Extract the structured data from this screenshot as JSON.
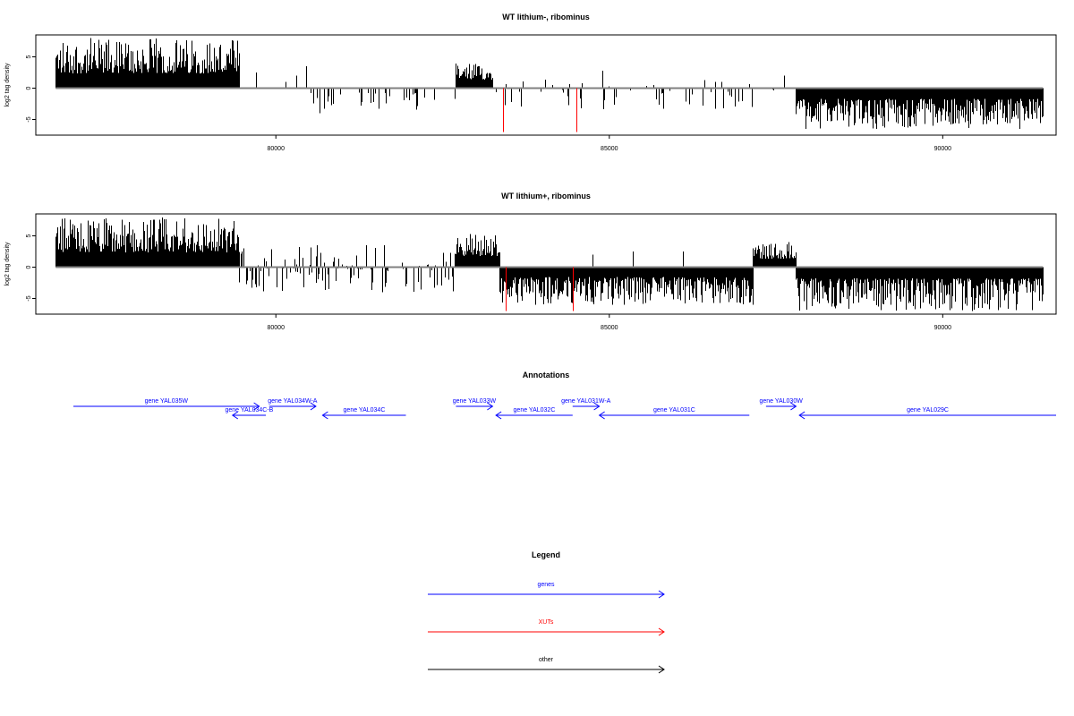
{
  "chart_data": [
    {
      "type": "bar",
      "title": "WT lithium-, ribominus",
      "ylabel": "log2 tag density",
      "xlabel": "",
      "x_ticks": [
        80000,
        85000,
        90000
      ],
      "y_ticks": [
        -5,
        0,
        5
      ],
      "xlim": [
        76400,
        91700
      ],
      "ylim": [
        -7.5,
        8.5
      ],
      "baseline_color": "#808080",
      "bar_color": "#000000",
      "regions": [
        {
          "start": 76700,
          "end": 79450,
          "min": 0.5,
          "max": 8.0,
          "density": 1.0
        },
        {
          "start": 82700,
          "end": 83250,
          "min": 0.5,
          "max": 4.0,
          "density": 1.0
        },
        {
          "start": 83300,
          "end": 87400,
          "min": -3.5,
          "max": 1.5,
          "density": 0.2
        },
        {
          "start": 87400,
          "end": 87800,
          "min": -1.0,
          "max": 2.8,
          "density": 0.4
        },
        {
          "start": 87800,
          "end": 91500,
          "min": -6.5,
          "max": -0.5,
          "density": 1.0
        },
        {
          "start": 80400,
          "end": 82700,
          "min": -3.5,
          "max": 0.0,
          "density": 0.15
        }
      ],
      "spikes": [
        {
          "x": 79700,
          "y": 2.5
        },
        {
          "x": 80150,
          "y": 1.0
        },
        {
          "x": 80300,
          "y": 2.0
        },
        {
          "x": 80450,
          "y": 3.5
        },
        {
          "x": 80650,
          "y": -4.0
        },
        {
          "x": 84900,
          "y": 2.8
        },
        {
          "x": 86580,
          "y": 1.0
        }
      ],
      "xuts": [
        {
          "x": 83400,
          "y": -7.0
        },
        {
          "x": 84500,
          "y": -7.0
        }
      ]
    },
    {
      "type": "bar",
      "title": "WT lithium+, ribominus",
      "ylabel": "log2 tag density",
      "xlabel": "",
      "x_ticks": [
        80000,
        85000,
        90000
      ],
      "y_ticks": [
        -5,
        0,
        5
      ],
      "xlim": [
        76400,
        91700
      ],
      "ylim": [
        -7.5,
        8.5
      ],
      "baseline_color": "#808080",
      "bar_color": "#000000",
      "regions": [
        {
          "start": 76700,
          "end": 79450,
          "min": 0.5,
          "max": 8.0,
          "density": 1.0
        },
        {
          "start": 79450,
          "end": 82700,
          "min": -4.0,
          "max": 3.5,
          "density": 0.5
        },
        {
          "start": 82700,
          "end": 83350,
          "min": 0.5,
          "max": 5.5,
          "density": 1.0
        },
        {
          "start": 83350,
          "end": 87150,
          "min": -6.0,
          "max": -0.5,
          "density": 1.0
        },
        {
          "start": 87150,
          "end": 87800,
          "min": 0.5,
          "max": 4.0,
          "density": 1.0
        },
        {
          "start": 87800,
          "end": 91500,
          "min": -7.0,
          "max": -0.5,
          "density": 1.0
        }
      ],
      "spikes": [
        {
          "x": 80600,
          "y": -2.5
        },
        {
          "x": 81350,
          "y": 3.5
        },
        {
          "x": 84750,
          "y": 2.0
        },
        {
          "x": 85350,
          "y": 2.5
        },
        {
          "x": 86100,
          "y": 2.5
        },
        {
          "x": 87150,
          "y": -6.0
        }
      ],
      "xuts": [
        {
          "x": 83450,
          "y": -7.0
        },
        {
          "x": 84450,
          "y": -7.0
        }
      ]
    }
  ],
  "annotations": {
    "title": "Annotations",
    "genes": [
      {
        "label": "gene YAL035W",
        "start": 76700,
        "end": 79750,
        "strand": "+",
        "row": 0,
        "color": "#0000ff"
      },
      {
        "label": "gene YAL034W-A",
        "start": 79900,
        "end": 80600,
        "strand": "+",
        "row": 0,
        "color": "#0000ff"
      },
      {
        "label": "gene YAL034C-B",
        "start": 79350,
        "end": 79850,
        "strand": "-",
        "row": 1,
        "color": "#0000ff"
      },
      {
        "label": "gene YAL034C",
        "start": 80700,
        "end": 81950,
        "strand": "-",
        "row": 1,
        "color": "#0000ff"
      },
      {
        "label": "gene YAL033W",
        "start": 82700,
        "end": 83250,
        "strand": "+",
        "row": 0,
        "color": "#0000ff"
      },
      {
        "label": "gene YAL032C",
        "start": 83300,
        "end": 84450,
        "strand": "-",
        "row": 1,
        "color": "#0000ff"
      },
      {
        "label": "gene YAL031W-A",
        "start": 84450,
        "end": 84850,
        "strand": "+",
        "row": 0,
        "color": "#0000ff"
      },
      {
        "label": "gene YAL031C",
        "start": 84850,
        "end": 87100,
        "strand": "-",
        "row": 1,
        "color": "#0000ff"
      },
      {
        "label": "gene YAL030W",
        "start": 87350,
        "end": 87800,
        "strand": "+",
        "row": 0,
        "color": "#0000ff"
      },
      {
        "label": "gene YAL029C",
        "start": 87850,
        "end": 91700,
        "strand": "-",
        "row": 1,
        "color": "#0000ff"
      }
    ]
  },
  "legend": {
    "title": "Legend",
    "items": [
      {
        "label": "genes",
        "color": "#0000ff"
      },
      {
        "label": "XUTs",
        "color": "#ff0000"
      },
      {
        "label": "other",
        "color": "#000000"
      }
    ]
  }
}
